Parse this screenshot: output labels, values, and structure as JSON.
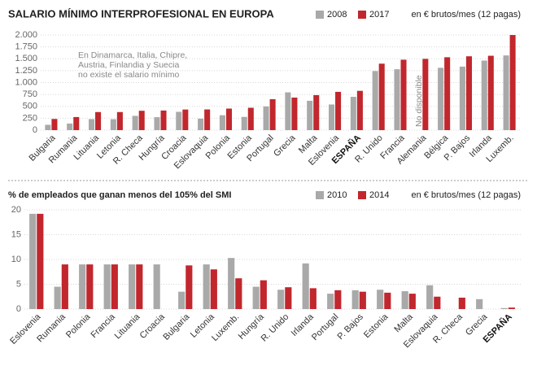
{
  "chart_data": [
    {
      "type": "bar",
      "title": "SALARIO MÍNIMO INTERPROFESIONAL EN EUROPA",
      "unit": "en € brutos/mes (12 pagas)",
      "categories": [
        "Bulgaria",
        "Rumania",
        "Lituania",
        "Letonia",
        "R. Checa",
        "Hungría",
        "Croacia",
        "Eslovaquia",
        "Polonia",
        "Estonia",
        "Portugal",
        "Grecia",
        "Malta",
        "Eslovenia",
        "ESPAÑA",
        "R. Unido",
        "Francia",
        "Alemania",
        "Bélgica",
        "P. Bajos",
        "Irlanda",
        "Luxemb."
      ],
      "bold_category": "ESPAÑA",
      "series": [
        {
          "name": "2008",
          "color": "#a9a9a9",
          "values": [
            112,
            139,
            232,
            230,
            300,
            272,
            385,
            241,
            313,
            278,
            497,
            794,
            617,
            539,
            700,
            1242,
            1280,
            null,
            1310,
            1335,
            1462,
            1570
          ]
        },
        {
          "name": "2017",
          "color": "#c1272d",
          "values": [
            235,
            275,
            380,
            380,
            407,
            412,
            433,
            435,
            453,
            470,
            650,
            684,
            736,
            805,
            826,
            1397,
            1480,
            1498,
            1532,
            1552,
            1563,
            1999
          ]
        }
      ],
      "ylim": [
        0,
        2000
      ],
      "yticks": [
        0,
        250,
        500,
        750,
        {
          "value": 1000,
          "label": "1.000"
        },
        {
          "value": 1250,
          "label": "1.250"
        },
        {
          "value": 1500,
          "label": "1.500"
        },
        {
          "value": 1750,
          "label": "1.750"
        },
        {
          "value": 2000,
          "label": "2.000"
        }
      ],
      "grid": true,
      "note": [
        "En Dinamarca, Italia, Chipre,",
        "Austria, Finlandia y Suecia",
        "no existe el salario mínimo"
      ],
      "na_label": "No disponible"
    },
    {
      "type": "bar",
      "title": "% de empleados que ganan menos del 105% del SMI",
      "unit": "en € brutos/mes (12 pagas)",
      "categories": [
        "Eslovenia",
        "Rumania",
        "Polonia",
        "Francia",
        "Lituania",
        "Croacia",
        "Bulgaria",
        "Letonia",
        "Luxemb.",
        "Hungría",
        "R. Unido",
        "Irlanda",
        "Portugal",
        "P. Bajos",
        "Estonia",
        "Malta",
        "Eslovaquia",
        "R. Checa",
        "Grecia",
        "ESPAÑA"
      ],
      "bold_category": "ESPAÑA",
      "series": [
        {
          "name": "2010",
          "color": "#a9a9a9",
          "values": [
            19.2,
            4.5,
            9,
            9,
            9,
            9,
            3.5,
            9,
            10.3,
            4.5,
            3.9,
            9.2,
            3.1,
            3.8,
            3.9,
            3.6,
            4.8,
            null,
            2.0,
            0.2
          ]
        },
        {
          "name": "2014",
          "color": "#c1272d",
          "values": [
            19.2,
            9,
            9,
            9,
            9,
            null,
            8.8,
            8,
            6.2,
            5.8,
            4.4,
            4.2,
            3.8,
            3.5,
            3.3,
            3.1,
            2.5,
            2.3,
            null,
            0.3
          ]
        }
      ],
      "ylim": [
        0,
        20
      ],
      "yticks": [
        0,
        5,
        10,
        15,
        20
      ],
      "grid": true
    }
  ]
}
